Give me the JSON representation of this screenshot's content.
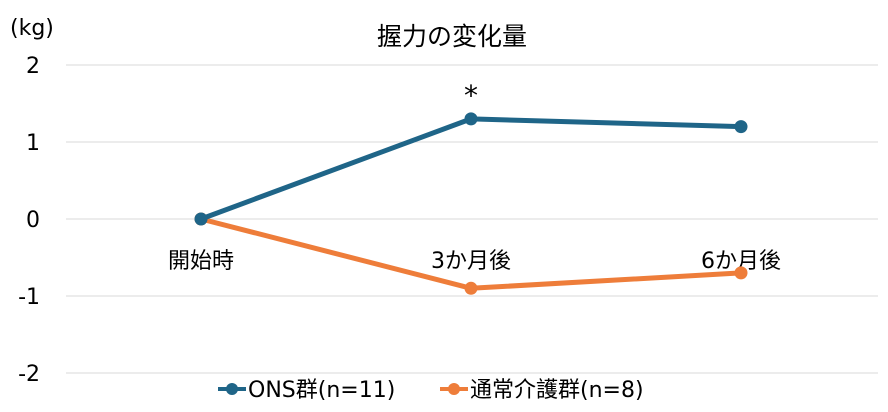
{
  "chart_data": {
    "type": "line",
    "title": "握力の変化量",
    "unit_label": "(kg)",
    "xlabel": "",
    "ylabel": "",
    "categories": [
      "開始時",
      "3か月後",
      "6か月後"
    ],
    "ylim": [
      -2,
      2
    ],
    "yticks": [
      "2",
      "1",
      "0",
      "-1",
      "-2"
    ],
    "grid": true,
    "legend_position": "bottom",
    "series": [
      {
        "name": "ONS群(n=11)",
        "values": [
          0,
          1.3,
          1.2
        ],
        "color": "#1f6588"
      },
      {
        "name": "通常介護群(n=8)",
        "values": [
          0,
          -0.9,
          -0.7
        ],
        "color": "#ee7d3a"
      }
    ],
    "annotations": [
      {
        "text": "*",
        "category": "3か月後",
        "series": "ONS群(n=11)"
      }
    ]
  }
}
